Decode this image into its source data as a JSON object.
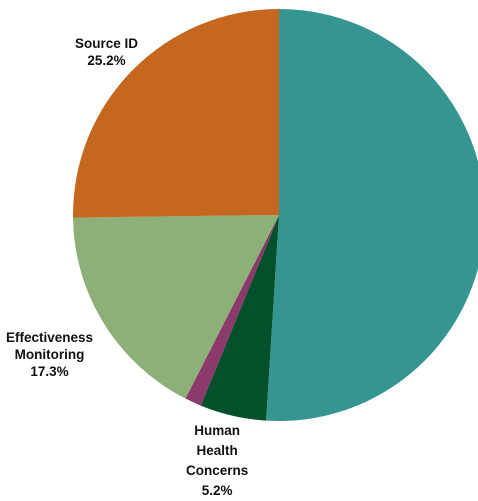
{
  "chart_data": {
    "type": "pie",
    "slices": [
      {
        "name": "",
        "value": 51.0,
        "color": "#359691"
      },
      {
        "name": "Human Health Concerns",
        "value": 5.2,
        "color": "#03502b"
      },
      {
        "name": "",
        "value": 1.3,
        "color": "#8b3a6b"
      },
      {
        "name": "Effectiveness Monitoring",
        "value": 17.3,
        "color": "#8daf78"
      },
      {
        "name": "Source ID",
        "value": 25.2,
        "color": "#c5671f"
      }
    ],
    "start_angle_deg": 0,
    "direction": "clockwise"
  },
  "labels": {
    "source_id": {
      "line1": "Source ID",
      "pct": "25.2%"
    },
    "effectiveness": {
      "line1": "Effectiveness",
      "line2": "Monitoring",
      "pct": "17.3%"
    },
    "human_health": {
      "line1": "Human",
      "line2": "Health",
      "line3": "Concerns",
      "pct": "5.2%"
    }
  }
}
